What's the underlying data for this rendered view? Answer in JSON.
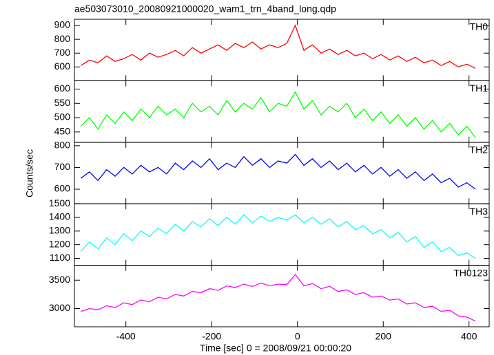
{
  "chart_data": {
    "type": "line",
    "title": "ae503073010_20080921000020_wam1_trn_4band_long.qdp",
    "xlabel": "Time [sec] 0 = 2008/09/21 00:00:20",
    "ylabel": "Counts/sec",
    "xlim": [
      -520,
      447
    ],
    "xticks": [
      -400,
      -200,
      0,
      200,
      400
    ],
    "x": [
      -505,
      -485,
      -465,
      -445,
      -425,
      -405,
      -385,
      -365,
      -345,
      -325,
      -305,
      -285,
      -265,
      -245,
      -225,
      -205,
      -185,
      -165,
      -145,
      -125,
      -105,
      -85,
      -65,
      -45,
      -25,
      -5,
      15,
      35,
      55,
      75,
      95,
      115,
      135,
      155,
      175,
      195,
      215,
      235,
      255,
      275,
      295,
      315,
      335,
      355,
      375,
      395,
      415
    ],
    "series": [
      {
        "name": "TH0",
        "color": "#ff0000",
        "ylim": [
          500,
          945
        ],
        "yticks": [
          600,
          700,
          800,
          900
        ],
        "values": [
          610,
          650,
          630,
          680,
          640,
          660,
          690,
          650,
          700,
          670,
          690,
          720,
          680,
          740,
          700,
          730,
          760,
          720,
          770,
          740,
          780,
          730,
          760,
          740,
          770,
          900,
          720,
          760,
          700,
          730,
          690,
          720,
          680,
          700,
          660,
          690,
          650,
          680,
          640,
          670,
          630,
          650,
          610,
          640,
          600,
          620,
          590
        ]
      },
      {
        "name": "TH1",
        "color": "#00ff00",
        "ylim": [
          414,
          629
        ],
        "yticks": [
          450,
          500,
          550,
          600
        ],
        "values": [
          470,
          500,
          460,
          510,
          480,
          520,
          490,
          530,
          500,
          540,
          510,
          530,
          500,
          550,
          520,
          540,
          510,
          560,
          520,
          550,
          530,
          570,
          520,
          550,
          540,
          590,
          530,
          560,
          510,
          540,
          520,
          550,
          500,
          530,
          490,
          520,
          480,
          510,
          470,
          500,
          460,
          490,
          450,
          480,
          440,
          470,
          430
        ]
      },
      {
        "name": "TH2",
        "color": "#0000ff",
        "ylim": [
          533,
          816
        ],
        "yticks": [
          600,
          700,
          800
        ],
        "values": [
          650,
          680,
          640,
          690,
          660,
          700,
          670,
          710,
          680,
          700,
          670,
          720,
          690,
          730,
          700,
          740,
          690,
          720,
          700,
          750,
          710,
          740,
          700,
          730,
          720,
          760,
          710,
          740,
          700,
          730,
          690,
          720,
          680,
          710,
          670,
          700,
          660,
          690,
          650,
          680,
          640,
          670,
          630,
          650,
          610,
          630,
          600
        ]
      },
      {
        "name": "TH3",
        "color": "#00ffff",
        "ylim": [
          1049,
          1500
        ],
        "yticks": [
          1100,
          1200,
          1300,
          1400,
          1500
        ],
        "values": [
          1150,
          1220,
          1170,
          1250,
          1200,
          1280,
          1230,
          1300,
          1260,
          1320,
          1280,
          1350,
          1300,
          1370,
          1330,
          1390,
          1340,
          1400,
          1350,
          1420,
          1360,
          1410,
          1370,
          1400,
          1380,
          1420,
          1360,
          1400,
          1350,
          1390,
          1330,
          1370,
          1310,
          1340,
          1280,
          1310,
          1250,
          1290,
          1220,
          1260,
          1180,
          1220,
          1150,
          1180,
          1120,
          1140,
          1100
        ]
      },
      {
        "name": "TH0123",
        "color": "#ff00ff",
        "ylim": [
          2679,
          3762
        ],
        "yticks": [
          3000,
          3500
        ],
        "values": [
          2950,
          3000,
          2980,
          3050,
          3020,
          3100,
          3070,
          3150,
          3120,
          3200,
          3170,
          3250,
          3220,
          3300,
          3280,
          3350,
          3320,
          3400,
          3370,
          3430,
          3390,
          3450,
          3400,
          3430,
          3420,
          3600,
          3400,
          3440,
          3350,
          3390,
          3300,
          3330,
          3250,
          3280,
          3200,
          3220,
          3150,
          3170,
          3080,
          3100,
          3020,
          3040,
          2950,
          2970,
          2870,
          2850,
          2780
        ]
      }
    ]
  }
}
